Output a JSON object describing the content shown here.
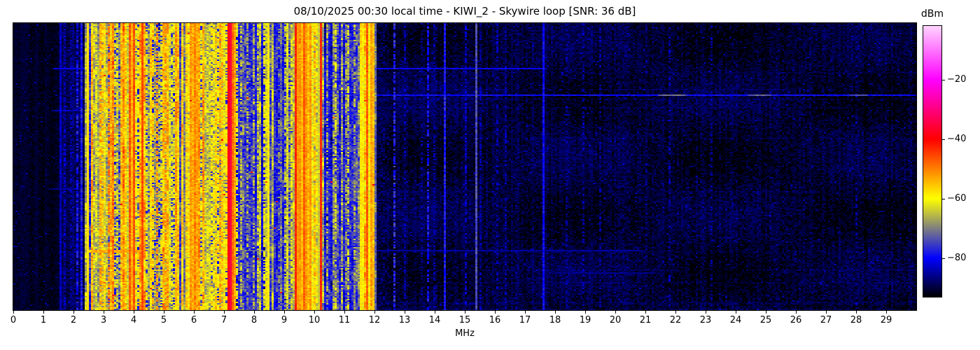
{
  "figure": {
    "title": "08/10/2025 00:30 local time - KIWI_2 - Skywire loop [SNR: 36 dB]",
    "xlabel": "MHz",
    "colorbar_label": "dBm"
  },
  "colors": {
    "background": "#ffffff",
    "text": "#000000",
    "frame": "#000000"
  },
  "chart_data": {
    "type": "heatmap",
    "title": "08/10/2025 00:30 local time - KIWI_2 - Skywire loop [SNR: 36 dB]",
    "xlabel": "MHz",
    "ylabel": "",
    "colorbar_label": "dBm",
    "x_range_mhz": [
      0,
      30
    ],
    "x_ticks": [
      0,
      1,
      2,
      3,
      4,
      5,
      6,
      7,
      8,
      9,
      10,
      11,
      12,
      13,
      14,
      15,
      16,
      17,
      18,
      19,
      20,
      21,
      22,
      23,
      24,
      25,
      26,
      27,
      28,
      29
    ],
    "y_ticks": [],
    "value_range_dbm": [
      -93,
      -2
    ],
    "colorbar_ticks_dbm": [
      -20,
      -40,
      -60,
      -80
    ],
    "colormap_stops": [
      [
        -93,
        "#000000"
      ],
      [
        -80,
        "#0000ff"
      ],
      [
        -60,
        "#ffff00"
      ],
      [
        -40,
        "#ff0000"
      ],
      [
        -20,
        "#ff00ff"
      ],
      [
        -2,
        "#ffd4ff"
      ]
    ],
    "bands": [
      {
        "f0": 0.0,
        "f1": 1.55,
        "base": -93.2,
        "kind": "very-quiet"
      },
      {
        "f0": 1.55,
        "f1": 2.38,
        "base": -90.0,
        "kind": "quiet"
      },
      {
        "f0": 2.38,
        "f1": 12.05,
        "base": -76.0,
        "kind": "busy"
      },
      {
        "f0": 12.05,
        "f1": 30.0,
        "base": -91.0,
        "kind": "quiet"
      }
    ],
    "quieter_sub_bands": [
      [
        2.38,
        2.56
      ],
      [
        7.38,
        9.33
      ],
      [
        10.26,
        11.52
      ]
    ],
    "carrier_fields": [
      "freq_mhz",
      "level_dbm",
      "width_mhz",
      "flicker"
    ],
    "carriers": [
      [
        1.58,
        -83,
        0.03,
        0.3
      ],
      [
        1.72,
        -84,
        0.04,
        0.5
      ],
      [
        1.95,
        -82,
        0.04,
        0.5
      ],
      [
        2.12,
        -79,
        0.04,
        0.5
      ],
      [
        2.25,
        -77,
        0.04,
        0.4
      ],
      [
        2.46,
        -56,
        0.03,
        0.15
      ],
      [
        2.62,
        -72,
        0.04,
        0.5
      ],
      [
        2.78,
        -62,
        0.05,
        0.5
      ],
      [
        2.92,
        -52,
        0.06,
        0.5
      ],
      [
        3.07,
        -64,
        0.04,
        0.6
      ],
      [
        3.2,
        -49,
        0.05,
        0.5
      ],
      [
        3.33,
        -56,
        0.05,
        0.6
      ],
      [
        3.48,
        -60,
        0.04,
        0.6
      ],
      [
        3.62,
        -53,
        0.06,
        0.5
      ],
      [
        3.75,
        -57,
        0.05,
        0.6
      ],
      [
        3.88,
        -47,
        0.05,
        0.4
      ],
      [
        3.99,
        -44,
        0.04,
        0.3
      ],
      [
        4.12,
        -56,
        0.05,
        0.6
      ],
      [
        4.28,
        -45,
        0.04,
        0.3
      ],
      [
        4.45,
        -60,
        0.05,
        0.6
      ],
      [
        4.62,
        -55,
        0.06,
        0.5
      ],
      [
        4.78,
        -52,
        0.05,
        0.5
      ],
      [
        4.95,
        -58,
        0.05,
        0.6
      ],
      [
        5.08,
        -51,
        0.05,
        0.5
      ],
      [
        5.24,
        -60,
        0.05,
        0.6
      ],
      [
        5.4,
        -55,
        0.06,
        0.5
      ],
      [
        5.62,
        -62,
        0.05,
        0.6
      ],
      [
        5.78,
        -55,
        0.06,
        0.5
      ],
      [
        5.92,
        -51,
        0.07,
        0.4
      ],
      [
        6.05,
        -50,
        0.08,
        0.4
      ],
      [
        6.18,
        -53,
        0.06,
        0.5
      ],
      [
        6.32,
        -58,
        0.05,
        0.6
      ],
      [
        6.48,
        -61,
        0.05,
        0.6
      ],
      [
        6.62,
        -56,
        0.05,
        0.5
      ],
      [
        6.76,
        -54,
        0.05,
        0.5
      ],
      [
        6.9,
        -52,
        0.06,
        0.5
      ],
      [
        7.05,
        -56,
        0.05,
        0.5
      ],
      [
        7.19,
        -29,
        0.025,
        0.1
      ],
      [
        7.26,
        -44,
        0.04,
        0.3
      ],
      [
        7.33,
        -49,
        0.04,
        0.4
      ],
      [
        7.44,
        -60,
        0.04,
        0.6
      ],
      [
        7.58,
        -66,
        0.04,
        0.7
      ],
      [
        7.8,
        -68,
        0.05,
        0.8
      ],
      [
        7.97,
        -67,
        0.04,
        0.8
      ],
      [
        8.12,
        -65,
        0.04,
        0.7
      ],
      [
        8.34,
        -63,
        0.04,
        0.7
      ],
      [
        8.46,
        -57,
        0.03,
        0.3
      ],
      [
        8.64,
        -70,
        0.04,
        0.8
      ],
      [
        8.86,
        -68,
        0.04,
        0.8
      ],
      [
        9.06,
        -64,
        0.04,
        0.7
      ],
      [
        9.22,
        -60,
        0.04,
        0.6
      ],
      [
        9.4,
        -42,
        0.045,
        0.25
      ],
      [
        9.53,
        -52,
        0.05,
        0.4
      ],
      [
        9.64,
        -45,
        0.04,
        0.3
      ],
      [
        9.76,
        -50,
        0.05,
        0.4
      ],
      [
        9.88,
        -52,
        0.05,
        0.4
      ],
      [
        10.02,
        -55,
        0.04,
        0.5
      ],
      [
        10.21,
        -42,
        0.03,
        0.15
      ],
      [
        10.44,
        -68,
        0.04,
        0.8
      ],
      [
        10.68,
        -61,
        0.04,
        0.7
      ],
      [
        10.92,
        -67,
        0.04,
        0.8
      ],
      [
        11.1,
        -62,
        0.04,
        0.7
      ],
      [
        11.32,
        -68,
        0.04,
        0.8
      ],
      [
        11.58,
        -54,
        0.04,
        0.4
      ],
      [
        11.77,
        -46,
        0.035,
        0.3
      ],
      [
        11.88,
        -52,
        0.05,
        0.4
      ],
      [
        11.97,
        -55,
        0.04,
        0.4
      ],
      [
        12.28,
        -82,
        0.03,
        0.6
      ],
      [
        12.66,
        -77,
        0.03,
        0.5
      ],
      [
        13.0,
        -86,
        0.03,
        0.6
      ],
      [
        13.6,
        -82,
        0.03,
        0.6
      ],
      [
        13.79,
        -79,
        0.03,
        0.5
      ],
      [
        14.02,
        -80,
        0.03,
        0.5
      ],
      [
        14.34,
        -78,
        0.03,
        0.4
      ],
      [
        14.65,
        -85,
        0.03,
        0.6
      ],
      [
        15.02,
        -83,
        0.03,
        0.6
      ],
      [
        15.37,
        -73,
        0.025,
        0.3
      ],
      [
        15.55,
        -81,
        0.03,
        0.5
      ],
      [
        16.06,
        -83,
        0.03,
        0.6
      ],
      [
        16.38,
        -84,
        0.03,
        0.6
      ],
      [
        16.8,
        -87,
        0.03,
        0.6
      ],
      [
        17.64,
        -76,
        0.025,
        0.3
      ],
      [
        18.0,
        -86,
        0.03,
        0.6
      ],
      [
        18.36,
        -84,
        0.03,
        0.6
      ],
      [
        18.95,
        -87,
        0.03,
        0.7
      ],
      [
        19.5,
        -88,
        0.03,
        0.7
      ],
      [
        20.1,
        -87,
        0.03,
        0.7
      ],
      [
        21.06,
        -86,
        0.03,
        0.7
      ],
      [
        21.8,
        -87,
        0.03,
        0.7
      ],
      [
        23.2,
        -88,
        0.03,
        0.7
      ],
      [
        24.0,
        -88,
        0.03,
        0.7
      ],
      [
        26.5,
        -89,
        0.03,
        0.7
      ],
      [
        28.0,
        -88,
        0.03,
        0.7
      ]
    ],
    "event_fields": [
      "row_frac",
      "rows",
      "f0_mhz",
      "f1_mhz",
      "level_dbm",
      "flicker"
    ],
    "time_events": [
      [
        0.158,
        1,
        1.3,
        17.7,
        -80,
        0.3
      ],
      [
        0.249,
        1,
        5.0,
        30.0,
        -79,
        0.3
      ],
      [
        0.249,
        1,
        21.4,
        22.4,
        -71,
        0.4
      ],
      [
        0.249,
        1,
        24.4,
        25.2,
        -72,
        0.4
      ],
      [
        0.249,
        1,
        27.8,
        28.4,
        -73,
        0.4
      ],
      [
        0.285,
        2,
        2.85,
        4.15,
        -55,
        0.5
      ],
      [
        0.285,
        1,
        4.15,
        8.6,
        -73,
        0.5
      ],
      [
        0.3,
        1,
        1.25,
        2.35,
        -83,
        0.4
      ],
      [
        0.435,
        1,
        2.5,
        11.9,
        -74,
        0.4
      ],
      [
        0.578,
        1,
        1.25,
        2.35,
        -84,
        0.4
      ],
      [
        0.79,
        2,
        2.5,
        4.35,
        -53,
        0.5
      ],
      [
        0.79,
        1,
        4.35,
        8.7,
        -72,
        0.4
      ],
      [
        0.79,
        1,
        8.7,
        21.0,
        -85,
        0.3
      ],
      [
        0.87,
        1,
        17.8,
        21.5,
        -86,
        0.3
      ]
    ],
    "render": {
      "cols": 430,
      "rows": 205,
      "seed": 1337
    },
    "legend_position": "right-colorbar",
    "grid": false
  }
}
